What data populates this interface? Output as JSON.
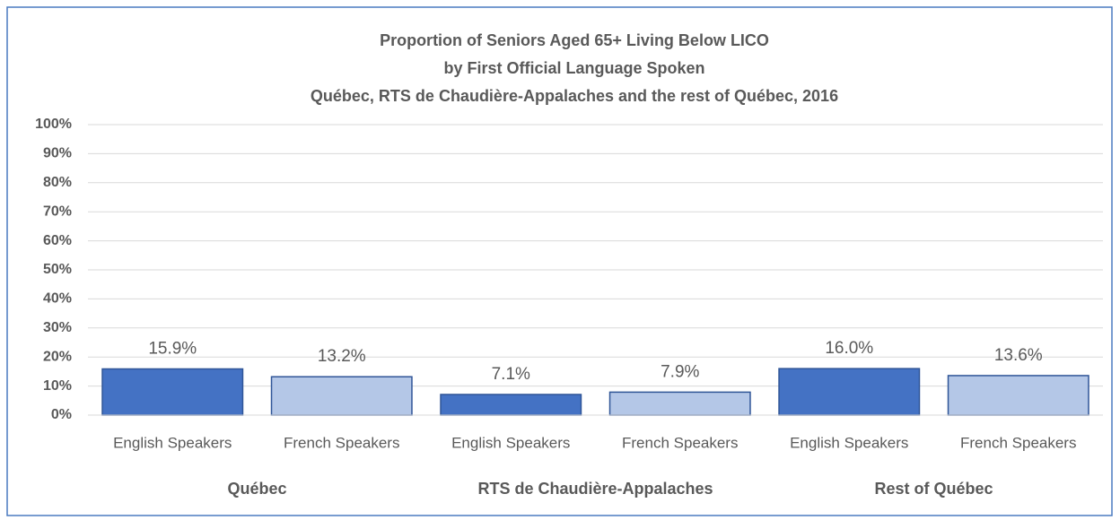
{
  "chart_data": {
    "type": "bar",
    "title": [
      "Proportion of Seniors Aged 65+ Living Below LICO",
      "by First Official Language Spoken",
      "Québec, RTS de Chaudière-Appalaches and the rest of Québec, 2016"
    ],
    "categories": [
      "Québec",
      "RTS de Chaudière-Appalaches",
      "Rest of Québec"
    ],
    "series": [
      {
        "name": "English Speakers",
        "color": "#4472c4",
        "values": [
          15.9,
          7.1,
          16.0
        ],
        "value_labels": [
          "15.9%",
          "7.1%",
          "16.0%"
        ]
      },
      {
        "name": "French Speakers",
        "color": "#b4c7e7",
        "values": [
          13.2,
          7.9,
          13.6
        ],
        "value_labels": [
          "13.2%",
          "7.9%",
          "13.6%"
        ]
      }
    ],
    "ylim": [
      0,
      100
    ],
    "yticks": [
      {
        "value": 0,
        "label": "0%"
      },
      {
        "value": 10,
        "label": "10%"
      },
      {
        "value": 20,
        "label": "20%"
      },
      {
        "value": 30,
        "label": "30%"
      },
      {
        "value": 40,
        "label": "40%"
      },
      {
        "value": 50,
        "label": "50%"
      },
      {
        "value": 60,
        "label": "60%"
      },
      {
        "value": 70,
        "label": "70%"
      },
      {
        "value": 80,
        "label": "80%"
      },
      {
        "value": 90,
        "label": "90%"
      },
      {
        "value": 100,
        "label": "100%"
      }
    ],
    "grid": true
  }
}
